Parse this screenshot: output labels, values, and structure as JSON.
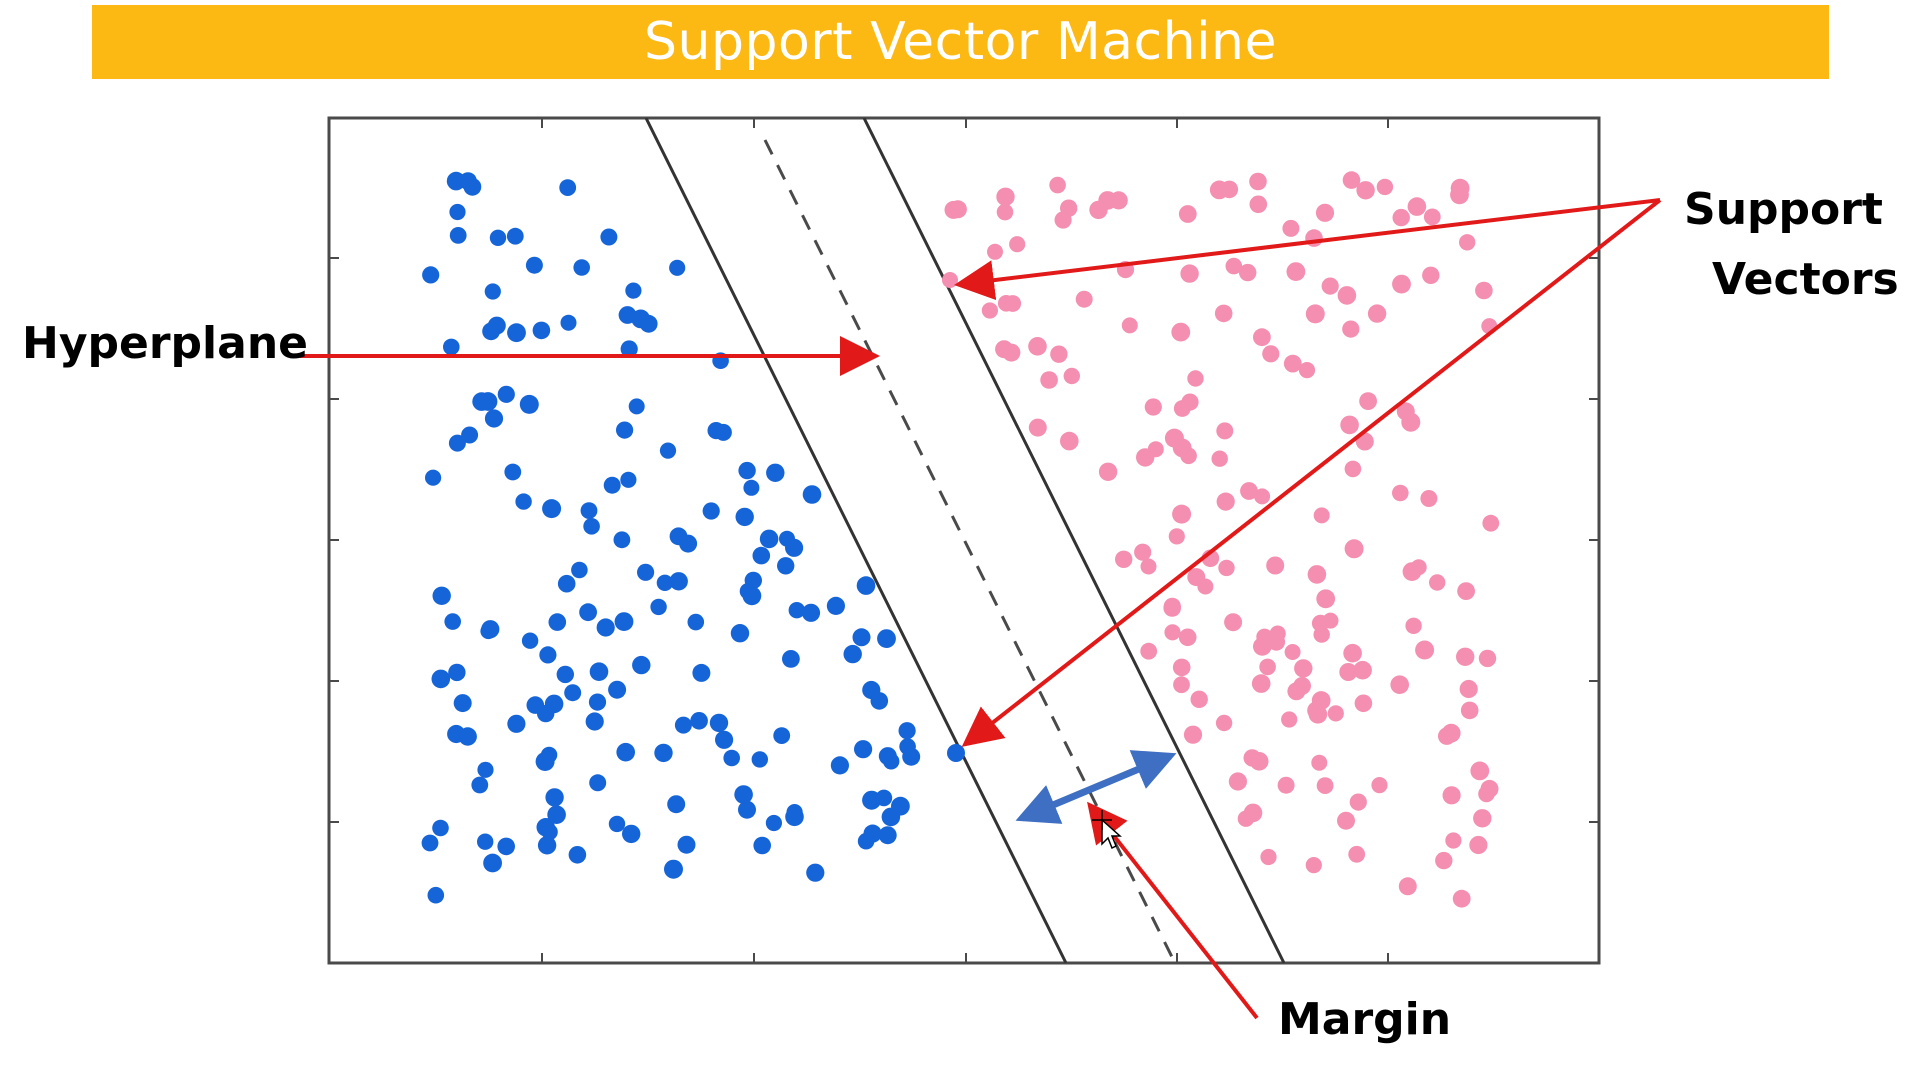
{
  "title": "Support Vector Machine",
  "colors": {
    "title_bar": "#fdb913",
    "title_text": "#ffffff",
    "class_a": "#1565d8",
    "class_b": "#f48fb1",
    "annotation_arrow": "#e11919",
    "margin_arrow": "#3e6fc2",
    "line": "#333333"
  },
  "annotations": {
    "hyperplane": "Hyperplane",
    "support_vectors_line1": "Support",
    "support_vectors_line2": "Vectors",
    "margin": "Margin"
  },
  "icons": {
    "cursor": "move-cursor-icon",
    "arrow": "red-arrow-icon",
    "margin": "double-arrow-icon"
  }
}
